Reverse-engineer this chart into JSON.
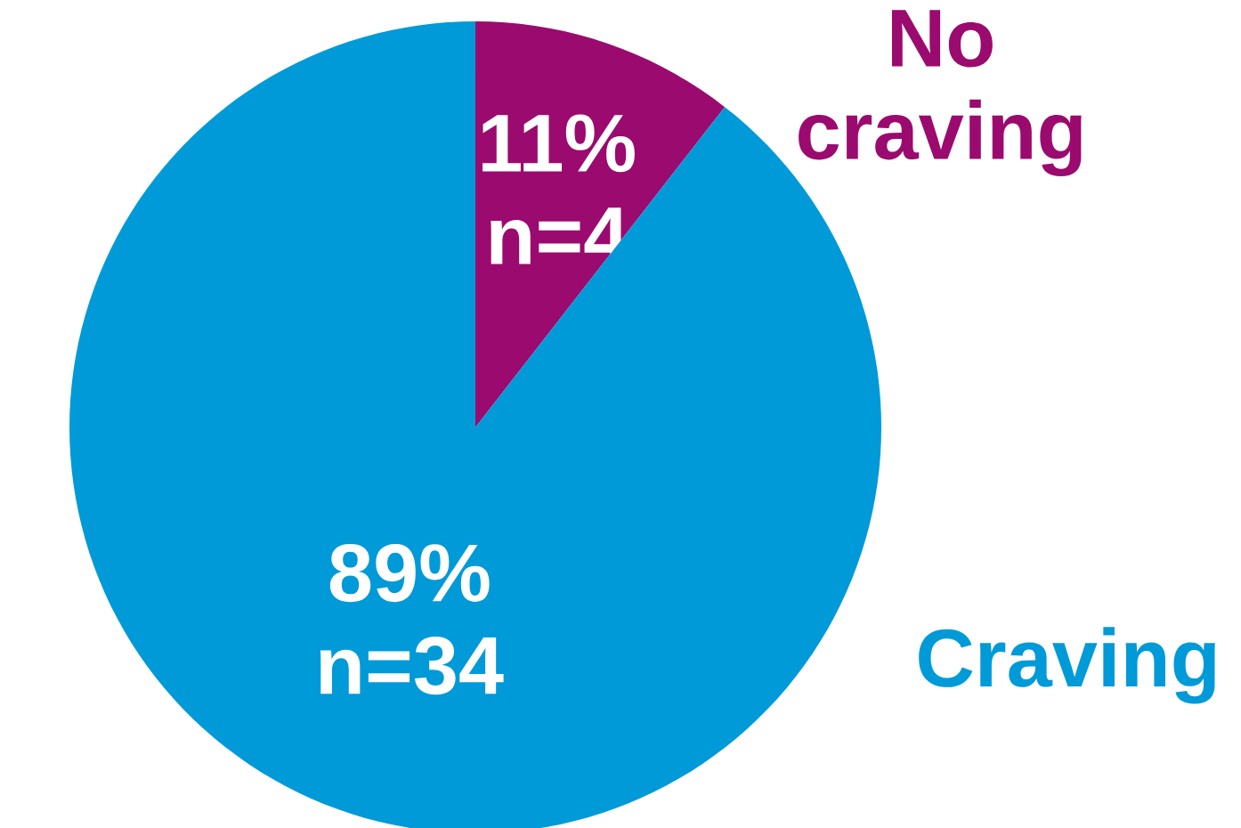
{
  "chart_data": {
    "type": "pie",
    "categories": [
      "No craving",
      "Craving"
    ],
    "values": [
      4,
      34
    ],
    "colors": [
      "#9b0a6e",
      "#009ad8"
    ],
    "value_labels": [
      "11% n=4",
      "89% n=34"
    ]
  }
}
